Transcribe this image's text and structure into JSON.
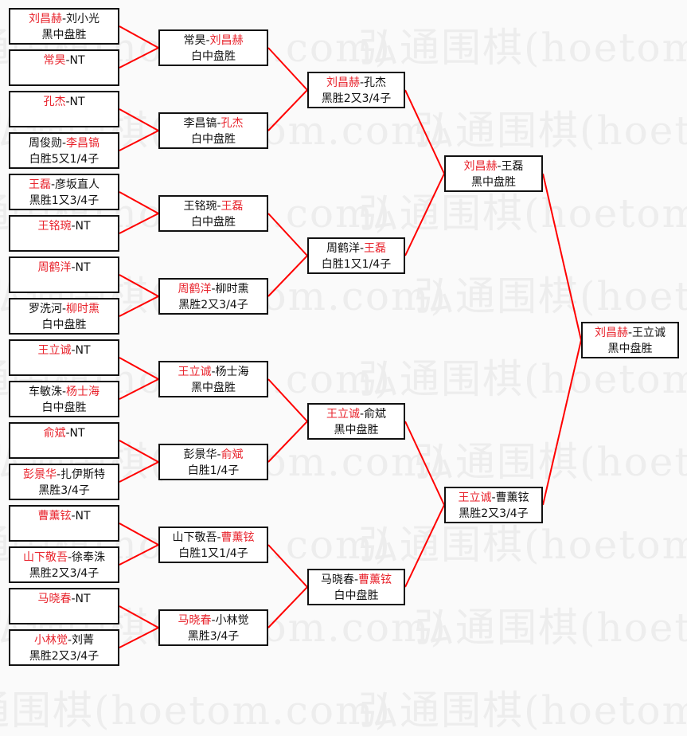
{
  "watermark": "弘通围棋(hoetom.com)",
  "colors": {
    "winner": "#e8232c",
    "connector": "#ff0000",
    "border": "#111111"
  },
  "rounds": [
    [
      {
        "p1": "刘昌赫",
        "p2": "刘小光",
        "winner": 0,
        "result": "黑中盘胜"
      },
      {
        "p1": "常昊",
        "p2": "NT",
        "winner": 0,
        "result": ""
      },
      {
        "p1": "孔杰",
        "p2": "NT",
        "winner": 0,
        "result": ""
      },
      {
        "p1": "周俊勋",
        "p2": "李昌镐",
        "winner": 1,
        "result": "白胜5又1/4子"
      },
      {
        "p1": "王磊",
        "p2": "彦坂直人",
        "winner": 0,
        "result": "黑胜1又3/4子"
      },
      {
        "p1": "王铭琬",
        "p2": "NT",
        "winner": 0,
        "result": ""
      },
      {
        "p1": "周鹤洋",
        "p2": "NT",
        "winner": 0,
        "result": ""
      },
      {
        "p1": "罗洗河",
        "p2": "柳时熏",
        "winner": 1,
        "result": "白中盘胜"
      },
      {
        "p1": "王立诚",
        "p2": "NT",
        "winner": 0,
        "result": ""
      },
      {
        "p1": "车敏洙",
        "p2": "杨士海",
        "winner": 1,
        "result": "白中盘胜"
      },
      {
        "p1": "俞斌",
        "p2": "NT",
        "winner": 0,
        "result": ""
      },
      {
        "p1": "彭景华",
        "p2": "扎伊斯特",
        "winner": 0,
        "result": "黑胜3/4子"
      },
      {
        "p1": "曹薰铉",
        "p2": "NT",
        "winner": 0,
        "result": ""
      },
      {
        "p1": "山下敬吾",
        "p2": "徐奉洙",
        "winner": 0,
        "result": "黑胜2又3/4子"
      },
      {
        "p1": "马晓春",
        "p2": "NT",
        "winner": 0,
        "result": ""
      },
      {
        "p1": "小林觉",
        "p2": "刘菁",
        "winner": 0,
        "result": "黑胜2又3/4子"
      }
    ],
    [
      {
        "p1": "常昊",
        "p2": "刘昌赫",
        "winner": 1,
        "result": "白中盘胜"
      },
      {
        "p1": "李昌镐",
        "p2": "孔杰",
        "winner": 1,
        "result": "白中盘胜"
      },
      {
        "p1": "王铭琬",
        "p2": "王磊",
        "winner": 1,
        "result": "白中盘胜"
      },
      {
        "p1": "周鹤洋",
        "p2": "柳时熏",
        "winner": 0,
        "result": "黑胜2又3/4子"
      },
      {
        "p1": "王立诚",
        "p2": "杨士海",
        "winner": 0,
        "result": "黑中盘胜"
      },
      {
        "p1": "彭景华",
        "p2": "俞斌",
        "winner": 1,
        "result": "白胜1/4子"
      },
      {
        "p1": "山下敬吾",
        "p2": "曹薰铉",
        "winner": 1,
        "result": "白胜1又1/4子"
      },
      {
        "p1": "马晓春",
        "p2": "小林觉",
        "winner": 0,
        "result": "黑胜3/4子"
      }
    ],
    [
      {
        "p1": "刘昌赫",
        "p2": "孔杰",
        "winner": 0,
        "result": "黑胜2又3/4子"
      },
      {
        "p1": "周鹤洋",
        "p2": "王磊",
        "winner": 1,
        "result": "白胜1又1/4子"
      },
      {
        "p1": "王立诚",
        "p2": "俞斌",
        "winner": 0,
        "result": "黑中盘胜"
      },
      {
        "p1": "马晓春",
        "p2": "曹薰铉",
        "winner": 1,
        "result": "白中盘胜"
      }
    ],
    [
      {
        "p1": "刘昌赫",
        "p2": "王磊",
        "winner": 0,
        "result": "黑中盘胜"
      },
      {
        "p1": "王立诚",
        "p2": "曹薰铉",
        "winner": 0,
        "result": "黑胜2又3/4子"
      }
    ],
    [
      {
        "p1": "刘昌赫",
        "p2": "王立诚",
        "winner": 0,
        "result": "黑中盘胜"
      }
    ]
  ]
}
